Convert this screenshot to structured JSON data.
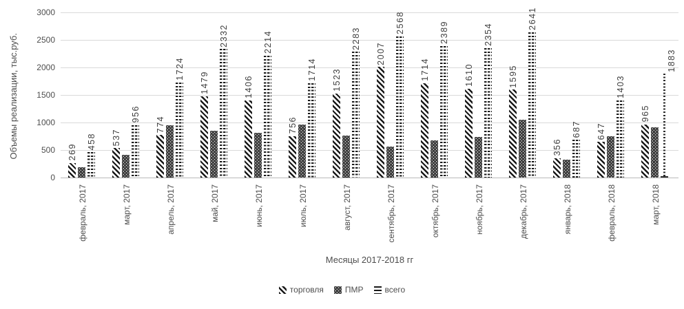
{
  "chart_data": {
    "type": "bar",
    "title": "",
    "ylabel": "Объемы реализации, тыс.руб.",
    "xlabel": "Месяцы 2017-2018 гг",
    "ylim": [
      0,
      3000
    ],
    "yticks": [
      0,
      500,
      1000,
      1500,
      2000,
      2500,
      3000
    ],
    "grid": "horizontal",
    "legend_position": "bottom",
    "categories": [
      "февраль, 2017",
      "март, 2017",
      "апрель, 2017",
      "май, 2017",
      "июнь, 2017",
      "июль, 2017",
      "август, 2017",
      "сентябрь, 2017",
      "октябрь, 2017",
      "ноябрь, 2017",
      "декабрь, 2017",
      "январь, 2018",
      "февраль, 2018",
      "март, 2018"
    ],
    "series": [
      {
        "id": "torgovlya",
        "name": "торговля",
        "pattern": "diagonal-hatch",
        "show_labels": true,
        "values": [
          269,
          537,
          774,
          1479,
          1406,
          756,
          1523,
          2007,
          1714,
          1610,
          1595,
          356,
          647,
          965
        ]
      },
      {
        "id": "pmr",
        "name": "ПМР",
        "pattern": "ring-lattice",
        "show_labels": false,
        "values_estimated": true,
        "values": [
          189,
          419,
          950,
          853,
          808,
          958,
          760,
          561,
          675,
          744,
          1046,
          331,
          756,
          918
        ]
      },
      {
        "id": "vsego",
        "name": "всего",
        "pattern": "horizontal-dash",
        "show_labels": true,
        "last_bar_style": "dotted-outline",
        "last_label_clipped": true,
        "last_value_estimated": true,
        "values": [
          458,
          956,
          1724,
          2332,
          2214,
          1714,
          2283,
          2568,
          2389,
          2354,
          2641,
          687,
          1403,
          1883
        ]
      }
    ]
  },
  "colors": {
    "ink": "#181818",
    "text": "#4d4d4d",
    "gridline": "#d9d9d9",
    "axis_line": "#b9b9b9",
    "background": "#ffffff"
  }
}
